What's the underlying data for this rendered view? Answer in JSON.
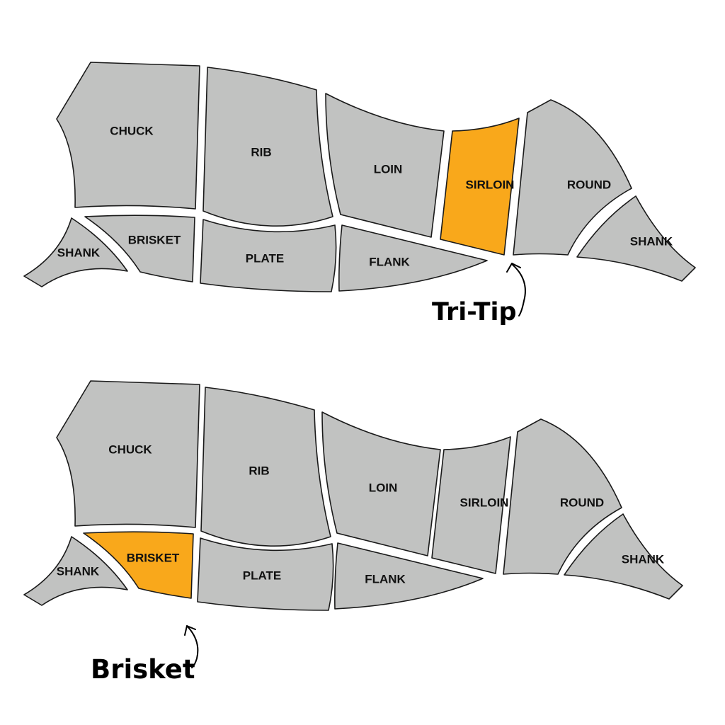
{
  "colors": {
    "cut_fill": "#c1c2c1",
    "highlight_fill": "#f9a81b",
    "outline": "#1a1a1a"
  },
  "diagrams": [
    {
      "highlighted_cut": "SIRLOIN",
      "callout": "Tri-Tip",
      "labels": {
        "chuck": "CHUCK",
        "rib": "RIB",
        "loin": "LOIN",
        "sirloin": "SIRLOIN",
        "round": "ROUND",
        "shank_hind": "SHANK",
        "shank_fore": "SHANK",
        "brisket": "BRISKET",
        "plate": "PLATE",
        "flank": "FLANK"
      }
    },
    {
      "highlighted_cut": "BRISKET",
      "callout": "Brisket",
      "labels": {
        "chuck": "CHUCK",
        "rib": "RIB",
        "loin": "LOIN",
        "sirloin": "SIRLOIN",
        "round": "ROUND",
        "shank_hind": "SHANK",
        "shank_fore": "SHANK",
        "brisket": "BRISKET",
        "plate": "PLATE",
        "flank": "FLANK"
      }
    }
  ]
}
